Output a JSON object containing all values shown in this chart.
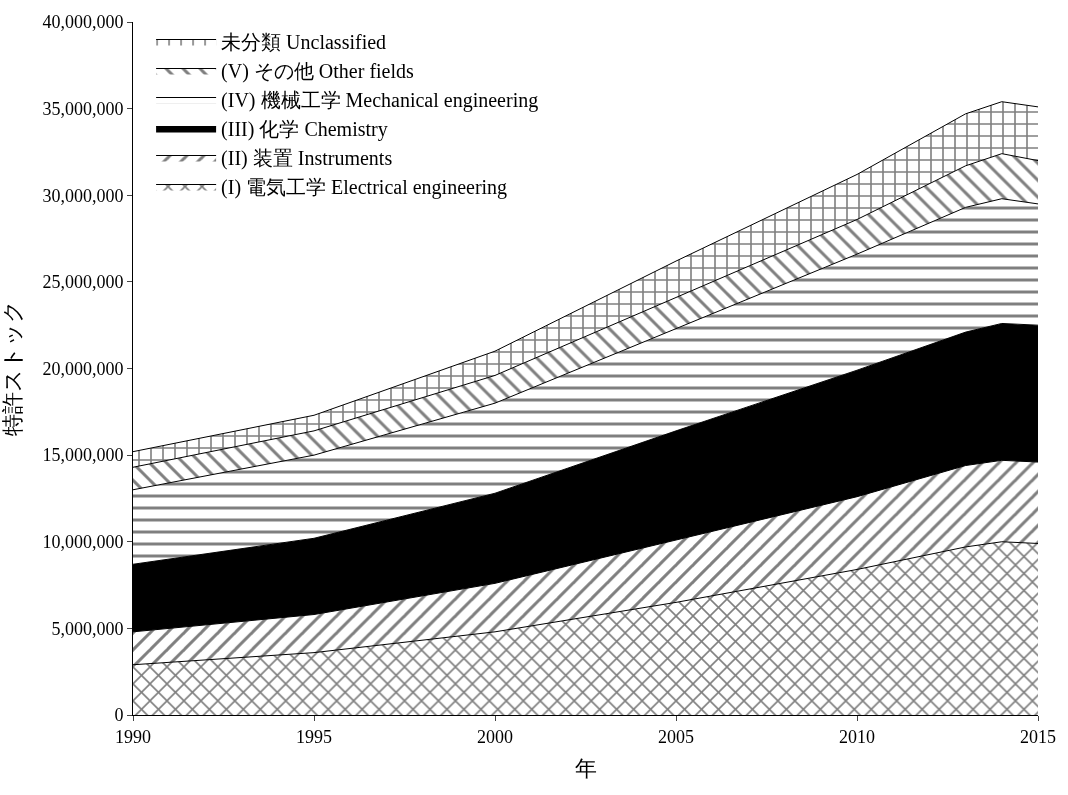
{
  "chart_data": {
    "type": "area",
    "stacked": true,
    "xlabel": "年",
    "ylabel": "特許ストック",
    "x": [
      1990,
      1995,
      2000,
      2005,
      2010,
      2013,
      2014,
      2015
    ],
    "series": [
      {
        "name": "(I) 電気工学 Electrical engineering",
        "color": "#000000",
        "values": [
          2900000,
          3600000,
          4800000,
          6500000,
          8400000,
          9700000,
          10000000,
          9900000
        ]
      },
      {
        "name": "(II) 装置 Instruments",
        "color": "#000000",
        "values": [
          1900000,
          2200000,
          2800000,
          3600000,
          4200000,
          4700000,
          4700000,
          4700000
        ]
      },
      {
        "name": "(III) 化学 Chemistry",
        "color": "#000000",
        "values": [
          3900000,
          4400000,
          5200000,
          6300000,
          7300000,
          7700000,
          7900000,
          7900000
        ]
      },
      {
        "name": "(IV) 機械工学 Mechanical engineering",
        "color": "#000000",
        "values": [
          4300000,
          4800000,
          5200000,
          5900000,
          6700000,
          7200000,
          7200000,
          7000000
        ]
      },
      {
        "name": "(V) その他 Other fields",
        "color": "#000000",
        "values": [
          1300000,
          1400000,
          1600000,
          1800000,
          2000000,
          2400000,
          2600000,
          2500000
        ]
      },
      {
        "name": "未分類 Unclassified",
        "color": "#000000",
        "values": [
          900000,
          900000,
          1400000,
          2100000,
          2600000,
          3000000,
          3000000,
          3100000
        ]
      }
    ],
    "xlim": [
      1990,
      2015
    ],
    "xticks": [
      1990,
      1995,
      2000,
      2005,
      2010,
      2015
    ],
    "ylim": [
      0,
      40000000
    ],
    "yticks": [
      0,
      {
        "value": 5000000,
        "label": "5,000,000"
      },
      {
        "value": 10000000,
        "label": "10,000,000"
      },
      {
        "value": 15000000,
        "label": "15,000,000"
      },
      {
        "value": 20000000,
        "label": "20,000,000"
      },
      {
        "value": 25000000,
        "label": "25,000,000"
      },
      {
        "value": 30000000,
        "label": "30,000,000"
      },
      {
        "value": 35000000,
        "label": "35,000,000"
      },
      {
        "value": 40000000,
        "label": "40,000,000"
      }
    ],
    "legend": "top left"
  }
}
